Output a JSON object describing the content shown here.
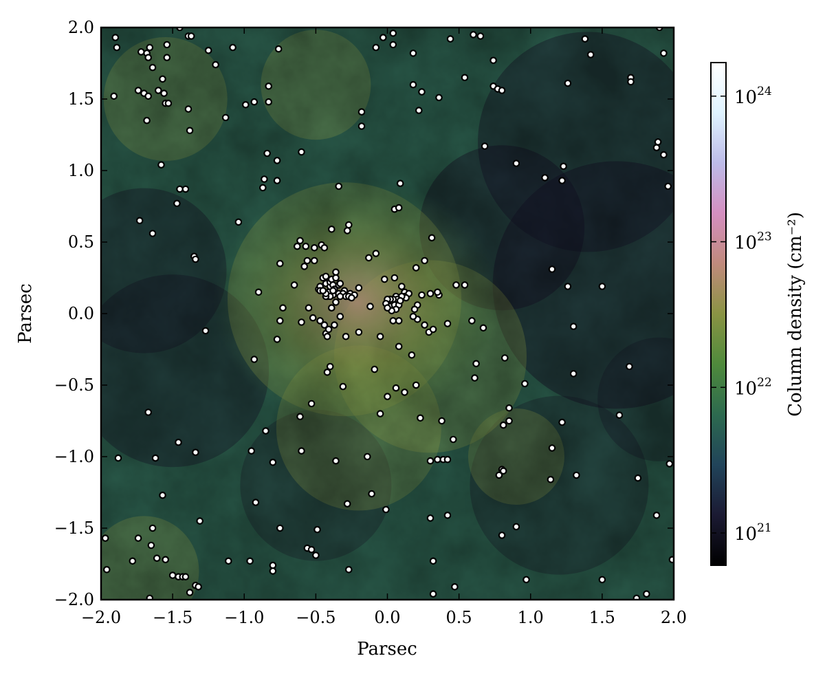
{
  "chart_data": {
    "type": "scatter",
    "title": "",
    "xlabel": "Parsec",
    "ylabel": "Parsec",
    "xlim": [
      -2.0,
      2.0
    ],
    "ylim": [
      -2.0,
      2.0
    ],
    "x_ticks": [
      -2.0,
      -1.5,
      -1.0,
      -0.5,
      0.0,
      0.5,
      1.0,
      1.5,
      2.0
    ],
    "y_ticks": [
      -2.0,
      -1.5,
      -1.0,
      -0.5,
      0.0,
      0.5,
      1.0,
      1.5,
      2.0
    ],
    "x_tick_labels": [
      "−2.0",
      "−1.5",
      "−1.0",
      "−0.5",
      "0.0",
      "0.5",
      "1.0",
      "1.5",
      "2.0"
    ],
    "y_tick_labels": [
      "−2.0",
      "−1.5",
      "−1.0",
      "−0.5",
      "0.0",
      "0.5",
      "1.0",
      "1.5",
      "2.0"
    ],
    "background": "column density map (colormap: black → dark blue → green → olive → pink → light blue → white)",
    "colorbar": {
      "label": "Column density (cm⁻²)",
      "scale": "log",
      "range": [
        6e+20,
        1.7e+24
      ],
      "ticks": [
        1e+21,
        1e+22,
        1e+23,
        1e+24
      ],
      "tick_labels": [
        {
          "base": "10",
          "exp": "21"
        },
        {
          "base": "10",
          "exp": "22"
        },
        {
          "base": "10",
          "exp": "23"
        },
        {
          "base": "10",
          "exp": "24"
        }
      ],
      "colors": [
        "#000000",
        "#1b1a33",
        "#21445a",
        "#2d6a4f",
        "#4f8a3c",
        "#8a9444",
        "#c08a7c",
        "#d48fc0",
        "#bdbbe8",
        "#dff3ff",
        "#ffffff"
      ]
    },
    "marker_style": {
      "fill": "#ffffff",
      "edge": "#000000"
    },
    "points": [
      [
        -1.9,
        1.93
      ],
      [
        -1.89,
        1.86
      ],
      [
        -1.72,
        1.83
      ],
      [
        -1.68,
        1.82
      ],
      [
        -1.66,
        1.86
      ],
      [
        -1.67,
        1.79
      ],
      [
        -1.45,
        2.0
      ],
      [
        -1.39,
        1.94
      ],
      [
        -1.37,
        1.94
      ],
      [
        -1.54,
        1.88
      ],
      [
        -1.54,
        1.79
      ],
      [
        -1.25,
        1.84
      ],
      [
        -1.2,
        1.74
      ],
      [
        -1.08,
        1.86
      ],
      [
        -0.76,
        1.85
      ],
      [
        -1.91,
        1.52
      ],
      [
        -1.74,
        1.56
      ],
      [
        -1.7,
        1.54
      ],
      [
        -1.67,
        1.52
      ],
      [
        -1.64,
        1.72
      ],
      [
        -1.6,
        1.56
      ],
      [
        -1.56,
        1.54
      ],
      [
        -1.57,
        1.64
      ],
      [
        -1.55,
        1.47
      ],
      [
        -1.53,
        1.47
      ],
      [
        -1.39,
        1.43
      ],
      [
        -1.68,
        1.35
      ],
      [
        -1.38,
        1.28
      ],
      [
        -1.13,
        1.37
      ],
      [
        -0.99,
        1.46
      ],
      [
        -0.93,
        1.48
      ],
      [
        -0.83,
        1.59
      ],
      [
        -0.83,
        1.48
      ],
      [
        -1.58,
        1.04
      ],
      [
        -1.47,
        0.77
      ],
      [
        -1.45,
        0.87
      ],
      [
        -1.41,
        0.87
      ],
      [
        -0.84,
        1.12
      ],
      [
        -0.77,
        1.07
      ],
      [
        -0.86,
        0.94
      ],
      [
        -0.87,
        0.88
      ],
      [
        -0.77,
        0.93
      ],
      [
        -0.6,
        1.13
      ],
      [
        -1.73,
        0.65
      ],
      [
        -1.64,
        0.56
      ],
      [
        -1.35,
        0.4
      ],
      [
        -1.34,
        0.38
      ],
      [
        -1.04,
        0.64
      ],
      [
        -0.34,
        0.89
      ],
      [
        -0.27,
        0.62
      ],
      [
        -0.28,
        0.58
      ],
      [
        -0.18,
        1.41
      ],
      [
        -0.18,
        1.31
      ],
      [
        -0.08,
        1.86
      ],
      [
        -0.03,
        1.93
      ],
      [
        0.04,
        1.96
      ],
      [
        0.04,
        1.88
      ],
      [
        0.18,
        1.82
      ],
      [
        0.18,
        1.6
      ],
      [
        0.24,
        1.55
      ],
      [
        0.36,
        1.51
      ],
      [
        0.22,
        1.42
      ],
      [
        0.09,
        0.91
      ],
      [
        0.05,
        0.73
      ],
      [
        0.08,
        0.74
      ],
      [
        0.44,
        1.92
      ],
      [
        0.6,
        1.95
      ],
      [
        0.65,
        1.94
      ],
      [
        0.54,
        1.65
      ],
      [
        0.74,
        1.77
      ],
      [
        0.74,
        1.59
      ],
      [
        0.77,
        1.57
      ],
      [
        0.8,
        1.56
      ],
      [
        0.68,
        1.17
      ],
      [
        0.9,
        1.05
      ],
      [
        1.1,
        0.95
      ],
      [
        1.22,
        0.93
      ],
      [
        1.23,
        1.03
      ],
      [
        1.26,
        1.61
      ],
      [
        1.38,
        1.92
      ],
      [
        1.42,
        1.81
      ],
      [
        1.7,
        1.65
      ],
      [
        1.7,
        1.62
      ],
      [
        1.9,
        2.0
      ],
      [
        1.93,
        1.82
      ],
      [
        1.88,
        1.16
      ],
      [
        1.89,
        1.2
      ],
      [
        1.93,
        1.11
      ],
      [
        1.96,
        0.89
      ],
      [
        1.15,
        0.31
      ],
      [
        1.26,
        0.19
      ],
      [
        1.5,
        0.19
      ],
      [
        1.3,
        -0.09
      ],
      [
        1.3,
        -0.42
      ],
      [
        1.69,
        -0.37
      ],
      [
        0.96,
        -0.49
      ],
      [
        0.82,
        -0.31
      ],
      [
        0.62,
        -0.35
      ],
      [
        0.61,
        -0.45
      ],
      [
        0.85,
        -0.66
      ],
      [
        0.85,
        -0.75
      ],
      [
        0.81,
        -0.78
      ],
      [
        1.22,
        -0.76
      ],
      [
        1.62,
        -0.71
      ],
      [
        1.15,
        -0.94
      ],
      [
        1.14,
        -1.16
      ],
      [
        1.32,
        -1.13
      ],
      [
        0.8,
        -1.09
      ],
      [
        0.81,
        -1.1
      ],
      [
        0.78,
        -1.13
      ],
      [
        0.9,
        -1.49
      ],
      [
        0.8,
        -1.55
      ],
      [
        0.97,
        -1.86
      ],
      [
        1.5,
        -1.86
      ],
      [
        1.75,
        -1.15
      ],
      [
        1.88,
        -1.41
      ],
      [
        1.97,
        -1.05
      ],
      [
        1.99,
        -1.72
      ],
      [
        1.81,
        -1.96
      ],
      [
        1.74,
        -1.99
      ],
      [
        0.47,
        -1.91
      ],
      [
        0.32,
        -1.96
      ],
      [
        0.32,
        -1.73
      ],
      [
        0.42,
        -1.41
      ],
      [
        0.3,
        -1.43
      ],
      [
        0.35,
        -1.02
      ],
      [
        0.39,
        -1.02
      ],
      [
        0.42,
        -1.02
      ],
      [
        0.46,
        -0.88
      ],
      [
        0.3,
        -1.03
      ],
      [
        0.38,
        -0.75
      ],
      [
        0.23,
        -0.73
      ],
      [
        0.2,
        -0.5
      ],
      [
        0.12,
        -0.55
      ],
      [
        0.06,
        -0.52
      ],
      [
        0.0,
        -0.58
      ],
      [
        -0.05,
        -0.7
      ],
      [
        -0.09,
        -0.39
      ],
      [
        -0.14,
        -1.0
      ],
      [
        -0.11,
        -1.26
      ],
      [
        -0.01,
        -1.37
      ],
      [
        -0.28,
        -1.33
      ],
      [
        -0.27,
        -1.79
      ],
      [
        -0.31,
        -0.51
      ],
      [
        -0.36,
        -1.03
      ],
      [
        -0.53,
        -0.63
      ],
      [
        -0.61,
        -0.72
      ],
      [
        -0.6,
        -0.96
      ],
      [
        -0.85,
        -0.82
      ],
      [
        -0.8,
        -1.04
      ],
      [
        -0.95,
        -0.96
      ],
      [
        -0.92,
        -1.32
      ],
      [
        -0.75,
        -1.5
      ],
      [
        -0.96,
        -1.73
      ],
      [
        -1.11,
        -1.73
      ],
      [
        -0.8,
        -1.76
      ],
      [
        -0.8,
        -1.8
      ],
      [
        -0.56,
        -1.64
      ],
      [
        -0.53,
        -1.65
      ],
      [
        -0.5,
        -1.69
      ],
      [
        -0.49,
        -1.51
      ],
      [
        -1.31,
        -1.45
      ],
      [
        -1.34,
        -0.97
      ],
      [
        -1.46,
        -0.9
      ],
      [
        -1.62,
        -1.01
      ],
      [
        -1.57,
        -1.27
      ],
      [
        -1.67,
        -0.69
      ],
      [
        -1.88,
        -1.01
      ],
      [
        -1.74,
        -1.57
      ],
      [
        -1.64,
        -1.5
      ],
      [
        -1.65,
        -1.62
      ],
      [
        -1.61,
        -1.71
      ],
      [
        -1.55,
        -1.72
      ],
      [
        -1.78,
        -1.73
      ],
      [
        -1.97,
        -1.57
      ],
      [
        -1.96,
        -1.79
      ],
      [
        -1.5,
        -1.83
      ],
      [
        -1.46,
        -1.84
      ],
      [
        -1.43,
        -1.84
      ],
      [
        -1.41,
        -1.84
      ],
      [
        -1.38,
        -1.95
      ],
      [
        -1.34,
        -1.9
      ],
      [
        -1.32,
        -1.91
      ],
      [
        -1.66,
        -1.99
      ],
      [
        -1.27,
        -0.12
      ],
      [
        -0.93,
        -0.32
      ],
      [
        -0.77,
        -0.18
      ],
      [
        -0.75,
        -0.05
      ],
      [
        -0.9,
        0.15
      ],
      [
        -0.75,
        0.35
      ],
      [
        -0.73,
        0.04
      ],
      [
        -0.65,
        0.2
      ],
      [
        -0.63,
        0.47
      ],
      [
        -0.61,
        0.51
      ],
      [
        -0.57,
        0.47
      ],
      [
        -0.58,
        0.33
      ],
      [
        -0.56,
        0.37
      ],
      [
        -0.51,
        0.37
      ],
      [
        -0.51,
        0.46
      ],
      [
        -0.46,
        0.48
      ],
      [
        -0.44,
        0.46
      ],
      [
        -0.39,
        0.59
      ],
      [
        -0.6,
        -0.06
      ],
      [
        -0.52,
        -0.03
      ],
      [
        -0.55,
        0.04
      ],
      [
        -0.47,
        -0.05
      ],
      [
        -0.44,
        -0.08
      ],
      [
        -0.43,
        -0.14
      ],
      [
        -0.41,
        -0.11
      ],
      [
        -0.37,
        -0.08
      ],
      [
        -0.42,
        -0.16
      ],
      [
        -0.42,
        -0.41
      ],
      [
        -0.4,
        -0.37
      ],
      [
        -0.29,
        -0.16
      ],
      [
        -0.2,
        -0.13
      ],
      [
        -0.3,
        0.16
      ],
      [
        -0.26,
        0.14
      ],
      [
        -0.23,
        0.13
      ],
      [
        -0.2,
        0.18
      ],
      [
        -0.12,
        0.05
      ],
      [
        -0.13,
        0.39
      ],
      [
        -0.08,
        0.42
      ],
      [
        -0.02,
        0.24
      ],
      [
        -0.05,
        -0.16
      ],
      [
        0.04,
        -0.05
      ],
      [
        0.08,
        -0.05
      ],
      [
        0.08,
        -0.23
      ],
      [
        0.17,
        -0.29
      ],
      [
        0.21,
        -0.04
      ],
      [
        0.26,
        -0.08
      ],
      [
        0.29,
        -0.13
      ],
      [
        0.32,
        -0.11
      ],
      [
        0.42,
        -0.07
      ],
      [
        0.59,
        -0.05
      ],
      [
        0.67,
        -0.1
      ],
      [
        0.48,
        0.2
      ],
      [
        0.54,
        0.2
      ],
      [
        0.36,
        0.13
      ],
      [
        0.35,
        0.15
      ],
      [
        0.3,
        0.14
      ],
      [
        0.31,
        0.53
      ],
      [
        0.26,
        0.37
      ],
      [
        0.2,
        0.32
      ],
      [
        0.05,
        0.25
      ],
      [
        0.1,
        0.19
      ],
      [
        0.24,
        0.13
      ],
      [
        0.21,
        0.06
      ],
      [
        0.19,
        0.03
      ],
      [
        0.18,
        -0.02
      ],
      [
        0.12,
        0.15
      ],
      [
        0.12,
        0.12
      ],
      [
        0.15,
        0.14
      ],
      [
        0.13,
        0.11
      ],
      [
        0.1,
        0.12
      ],
      [
        0.06,
        0.12
      ],
      [
        0.07,
        0.1
      ],
      [
        0.04,
        0.1
      ],
      [
        0.02,
        0.1
      ],
      [
        0.0,
        0.1
      ],
      [
        -0.01,
        0.07
      ],
      [
        0.02,
        0.05
      ],
      [
        0.05,
        0.06
      ],
      [
        0.08,
        0.06
      ],
      [
        0.09,
        0.09
      ],
      [
        0.06,
        0.03
      ],
      [
        0.03,
        0.02
      ],
      [
        0.0,
        0.04
      ],
      [
        -0.48,
        0.17
      ],
      [
        -0.47,
        0.19
      ],
      [
        -0.47,
        0.16
      ],
      [
        -0.45,
        0.25
      ],
      [
        -0.43,
        0.26
      ],
      [
        -0.43,
        0.21
      ],
      [
        -0.42,
        0.12
      ],
      [
        -0.41,
        0.15
      ],
      [
        -0.4,
        0.19
      ],
      [
        -0.4,
        0.22
      ],
      [
        -0.39,
        0.24
      ],
      [
        -0.38,
        0.2
      ],
      [
        -0.37,
        0.17
      ],
      [
        -0.36,
        0.25
      ],
      [
        -0.36,
        0.29
      ],
      [
        -0.34,
        0.14
      ],
      [
        -0.34,
        0.2
      ],
      [
        -0.33,
        0.21
      ],
      [
        -0.31,
        0.14
      ],
      [
        -0.33,
        0.12
      ],
      [
        -0.38,
        0.13
      ],
      [
        -0.4,
        0.12
      ],
      [
        -0.43,
        0.12
      ],
      [
        -0.43,
        0.14
      ],
      [
        -0.45,
        0.16
      ],
      [
        -0.38,
        0.16
      ],
      [
        -0.29,
        0.12
      ],
      [
        -0.27,
        0.12
      ],
      [
        -0.25,
        0.11
      ],
      [
        -0.36,
        0.08
      ],
      [
        -0.39,
        0.04
      ],
      [
        -0.33,
        -0.02
      ]
    ]
  }
}
